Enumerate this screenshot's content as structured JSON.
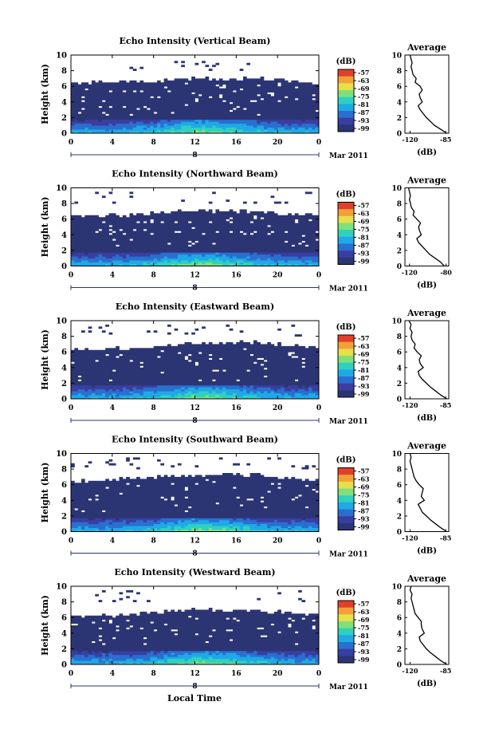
{
  "figure": {
    "xlabel": "Local Time",
    "date_label": "Mar 2011",
    "colorbar_unit": "(dB)",
    "colorbar_ticks": [
      "-57",
      "-63",
      "-69",
      "-75",
      "-81",
      "-87",
      "-93",
      "-99"
    ],
    "colors": {
      "background": "#2c3574",
      "scale": [
        "#2c3574",
        "#3a3ea0",
        "#2a6fd0",
        "#1fa9e6",
        "#2fd0c0",
        "#7fe07a",
        "#e6e04a",
        "#f4a03a",
        "#e0402a"
      ]
    }
  },
  "chart_data": [
    {
      "type": "heatmap",
      "title": "Echo Intensity (Vertical Beam)",
      "ylabel": "Height (km)",
      "xlim": [
        0,
        24
      ],
      "ylim": [
        0,
        10
      ],
      "x_ticks": [
        "0",
        "4",
        "8",
        "12",
        "16",
        "20",
        "0"
      ],
      "y_ticks": [
        "0",
        "2",
        "4",
        "6",
        "8",
        "10"
      ],
      "day_label": "8",
      "echo_top_km": [
        6.3,
        6.6,
        7.0,
        7.0,
        6.5
      ],
      "profile": {
        "title": "Average",
        "xlabel": "(dB)",
        "x_ticks": [
          "-120",
          "-85"
        ],
        "xlim": [
          -125,
          -82
        ],
        "points": [
          [
            -84,
            0
          ],
          [
            -90,
            0.5
          ],
          [
            -96,
            1.0
          ],
          [
            -100,
            1.5
          ],
          [
            -104,
            2.0
          ],
          [
            -107,
            2.5
          ],
          [
            -110,
            3.0
          ],
          [
            -112,
            3.5
          ],
          [
            -108,
            4.0
          ],
          [
            -110,
            4.5
          ],
          [
            -111,
            5.0
          ],
          [
            -108,
            5.5
          ],
          [
            -110,
            6.0
          ],
          [
            -115,
            6.5
          ],
          [
            -114,
            7.0
          ],
          [
            -117,
            7.5
          ],
          [
            -118,
            8.0
          ],
          [
            -119,
            8.5
          ],
          [
            -118,
            9.0
          ],
          [
            -119,
            9.5
          ],
          [
            -120,
            10.0
          ]
        ]
      }
    },
    {
      "type": "heatmap",
      "title": "Echo Intensity (Northward Beam)",
      "ylabel": "Height (km)",
      "xlim": [
        0,
        24
      ],
      "ylim": [
        0,
        10
      ],
      "x_ticks": [
        "0",
        "4",
        "8",
        "12",
        "16",
        "20",
        "0"
      ],
      "y_ticks": [
        "0",
        "2",
        "4",
        "6",
        "8",
        "10"
      ],
      "day_label": "8",
      "echo_top_km": [
        6.4,
        6.6,
        7.1,
        7.0,
        6.4
      ],
      "profile": {
        "title": "Average",
        "xlabel": "(dB)",
        "x_ticks": [
          "-120",
          "-80"
        ],
        "xlim": [
          -125,
          -77
        ],
        "points": [
          [
            -82,
            0
          ],
          [
            -86,
            0.5
          ],
          [
            -92,
            1.0
          ],
          [
            -98,
            1.5
          ],
          [
            -102,
            2.0
          ],
          [
            -106,
            2.5
          ],
          [
            -110,
            3.0
          ],
          [
            -112,
            3.5
          ],
          [
            -107,
            4.0
          ],
          [
            -109,
            4.5
          ],
          [
            -110,
            5.0
          ],
          [
            -108,
            5.5
          ],
          [
            -112,
            6.0
          ],
          [
            -116,
            6.5
          ],
          [
            -115,
            7.0
          ],
          [
            -118,
            7.5
          ],
          [
            -119,
            8.0
          ],
          [
            -120,
            8.5
          ],
          [
            -119,
            9.0
          ],
          [
            -120,
            9.5
          ],
          [
            -121,
            10.0
          ]
        ]
      }
    },
    {
      "type": "heatmap",
      "title": "Echo Intensity (Eastward Beam)",
      "ylabel": "Height (km)",
      "xlim": [
        0,
        24
      ],
      "ylim": [
        0,
        10
      ],
      "x_ticks": [
        "0",
        "4",
        "8",
        "12",
        "16",
        "20",
        "0"
      ],
      "y_ticks": [
        "0",
        "2",
        "4",
        "6",
        "8",
        "10"
      ],
      "day_label": "8",
      "echo_top_km": [
        6.2,
        6.5,
        7.1,
        7.2,
        6.6
      ],
      "profile": {
        "title": "Average",
        "xlabel": "(dB)",
        "x_ticks": [
          "-120",
          "-85"
        ],
        "xlim": [
          -125,
          -82
        ],
        "points": [
          [
            -84,
            0
          ],
          [
            -90,
            0.5
          ],
          [
            -95,
            1.0
          ],
          [
            -100,
            1.5
          ],
          [
            -104,
            2.0
          ],
          [
            -108,
            2.5
          ],
          [
            -111,
            3.0
          ],
          [
            -112,
            3.5
          ],
          [
            -107,
            4.0
          ],
          [
            -110,
            4.5
          ],
          [
            -111,
            5.0
          ],
          [
            -109,
            5.5
          ],
          [
            -113,
            6.0
          ],
          [
            -116,
            6.5
          ],
          [
            -115,
            7.0
          ],
          [
            -118,
            7.5
          ],
          [
            -119,
            8.0
          ],
          [
            -118,
            8.5
          ],
          [
            -120,
            9.0
          ],
          [
            -119,
            9.5
          ],
          [
            -121,
            10.0
          ]
        ]
      }
    },
    {
      "type": "heatmap",
      "title": "Echo Intensity (Southward Beam)",
      "ylabel": "Height (km)",
      "xlim": [
        0,
        24
      ],
      "ylim": [
        0,
        10
      ],
      "x_ticks": [
        "0",
        "4",
        "8",
        "12",
        "16",
        "20",
        "0"
      ],
      "y_ticks": [
        "0",
        "2",
        "4",
        "6",
        "8",
        "10"
      ],
      "day_label": "8",
      "echo_top_km": [
        6.3,
        6.8,
        7.3,
        7.2,
        6.5
      ],
      "profile": {
        "title": "Average",
        "xlabel": "(dB)",
        "x_ticks": [
          "-120",
          "-85"
        ],
        "xlim": [
          -125,
          -82
        ],
        "points": [
          [
            -84,
            0
          ],
          [
            -90,
            0.5
          ],
          [
            -95,
            1.0
          ],
          [
            -100,
            1.5
          ],
          [
            -104,
            2.0
          ],
          [
            -108,
            2.5
          ],
          [
            -110,
            3.0
          ],
          [
            -112,
            3.5
          ],
          [
            -106,
            4.0
          ],
          [
            -109,
            4.5
          ],
          [
            -108,
            5.0
          ],
          [
            -107,
            5.5
          ],
          [
            -111,
            6.0
          ],
          [
            -114,
            6.5
          ],
          [
            -116,
            7.0
          ],
          [
            -117,
            7.5
          ],
          [
            -118,
            8.0
          ],
          [
            -119,
            8.5
          ],
          [
            -120,
            9.0
          ],
          [
            -119,
            9.5
          ],
          [
            -120,
            10.0
          ]
        ]
      }
    },
    {
      "type": "heatmap",
      "title": "Echo Intensity (Westward Beam)",
      "ylabel": "Height (km)",
      "xlim": [
        0,
        24
      ],
      "ylim": [
        0,
        10
      ],
      "x_ticks": [
        "0",
        "4",
        "8",
        "12",
        "16",
        "20",
        "0"
      ],
      "y_ticks": [
        "0",
        "2",
        "4",
        "6",
        "8",
        "10"
      ],
      "day_label": "8",
      "echo_top_km": [
        6.0,
        6.4,
        7.0,
        6.9,
        6.3
      ],
      "profile": {
        "title": "Average",
        "xlabel": "(dB)",
        "x_ticks": [
          "-120",
          "-85"
        ],
        "xlim": [
          -125,
          -82
        ],
        "points": [
          [
            -84,
            0
          ],
          [
            -90,
            0.5
          ],
          [
            -95,
            1.0
          ],
          [
            -100,
            1.5
          ],
          [
            -104,
            2.0
          ],
          [
            -107,
            2.5
          ],
          [
            -110,
            3.0
          ],
          [
            -111,
            3.5
          ],
          [
            -106,
            4.0
          ],
          [
            -108,
            4.5
          ],
          [
            -109,
            5.0
          ],
          [
            -109,
            5.5
          ],
          [
            -112,
            6.0
          ],
          [
            -115,
            6.5
          ],
          [
            -116,
            7.0
          ],
          [
            -117,
            7.5
          ],
          [
            -118,
            8.0
          ],
          [
            -119,
            8.5
          ],
          [
            -118,
            9.0
          ],
          [
            -120,
            9.5
          ],
          [
            -119,
            10.0
          ]
        ]
      }
    }
  ]
}
